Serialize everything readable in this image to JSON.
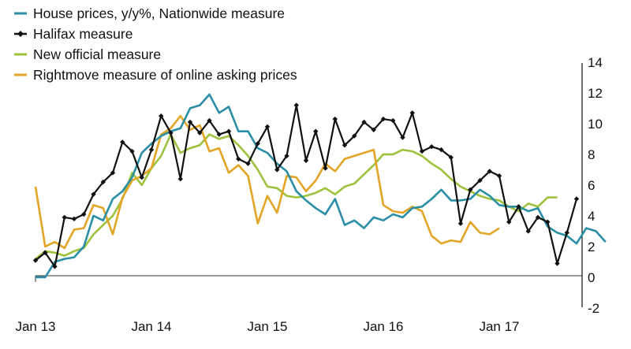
{
  "chart_data": {
    "type": "line",
    "x_start": "Jan 13",
    "x_tick_labels": [
      "Jan 13",
      "Jan 14",
      "Jan 15",
      "Jan 16",
      "Jan 17"
    ],
    "y_tick_labels": [
      "14",
      "12",
      "10",
      "8",
      "6",
      "4",
      "2",
      "0",
      "-2"
    ],
    "ylim": [
      -2,
      14
    ],
    "y_axis_side": "right",
    "grid": false,
    "legend_position": "top-left",
    "series": [
      {
        "name": "House prices, y/y%, Nationwide measure",
        "color": "#2a8fa5",
        "values": [
          -0.1,
          -0.1,
          0.9,
          1.1,
          1.2,
          1.9,
          3.9,
          3.6,
          5.0,
          5.5,
          6.4,
          8.0,
          8.6,
          9.1,
          9.4,
          9.6,
          10.9,
          11.1,
          11.8,
          10.6,
          11.0,
          9.4,
          9.4,
          8.3,
          8.0,
          7.3,
          6.8,
          5.5,
          4.9,
          4.4,
          4.0,
          5.0,
          3.3,
          3.6,
          3.1,
          3.8,
          3.6,
          4.0,
          3.8,
          4.4,
          4.5,
          5.0,
          5.6,
          4.9,
          4.9,
          5.0,
          5.6,
          5.2,
          4.6,
          4.5,
          4.5,
          4.2,
          4.4,
          3.2,
          2.8,
          2.6,
          2.1,
          3.1,
          2.9,
          2.2
        ]
      },
      {
        "name": "Halifax measure",
        "color": "#111111",
        "values": [
          1.0,
          1.5,
          0.6,
          3.8,
          3.7,
          4.0,
          5.3,
          6.1,
          6.7,
          8.7,
          8.1,
          6.4,
          8.2,
          10.4,
          9.3,
          6.3,
          10.0,
          9.3,
          10.1,
          9.2,
          9.4,
          7.6,
          7.3,
          8.6,
          9.7,
          6.9,
          7.8,
          11.1,
          7.5,
          9.4,
          7.0,
          10.2,
          8.5,
          9.1,
          10.0,
          9.5,
          10.2,
          10.1,
          9.0,
          10.6,
          8.1,
          8.4,
          8.2,
          7.7,
          3.4,
          5.6,
          6.2,
          6.8,
          6.5,
          3.5,
          4.5,
          2.9,
          3.8,
          3.5,
          0.8,
          2.8,
          5.0
        ]
      },
      {
        "name": "New official measure",
        "color": "#9dc23c",
        "values": [
          1.1,
          1.6,
          1.5,
          1.3,
          1.6,
          1.8,
          2.7,
          3.3,
          3.9,
          5.0,
          6.7,
          5.9,
          7.0,
          7.8,
          9.2,
          8.0,
          8.3,
          8.5,
          9.2,
          8.9,
          9.1,
          8.5,
          7.8,
          6.9,
          5.8,
          5.7,
          5.2,
          5.1,
          5.2,
          5.4,
          5.7,
          5.3,
          5.8,
          6.0,
          6.6,
          7.2,
          7.9,
          7.9,
          8.2,
          8.1,
          7.8,
          7.3,
          6.9,
          6.3,
          5.8,
          5.5,
          5.2,
          5.0,
          4.9,
          4.5,
          4.2,
          4.7,
          4.5,
          5.1,
          5.1
        ]
      },
      {
        "name": "Rightmove measure of online asking prices",
        "color": "#e3a526",
        "values": [
          5.8,
          1.9,
          2.2,
          1.8,
          3.0,
          3.1,
          4.6,
          4.4,
          2.7,
          5.1,
          6.2,
          6.5,
          7.0,
          9.2,
          9.6,
          10.4,
          9.5,
          9.8,
          8.1,
          8.3,
          6.7,
          7.2,
          6.5,
          3.4,
          5.2,
          4.1,
          6.5,
          6.4,
          5.5,
          6.2,
          7.3,
          6.8,
          7.6,
          7.8,
          8.0,
          8.2,
          4.6,
          4.2,
          4.1,
          4.5,
          4.2,
          2.6,
          2.1,
          2.3,
          2.2,
          3.5,
          2.8,
          2.7,
          3.1
        ]
      }
    ]
  }
}
